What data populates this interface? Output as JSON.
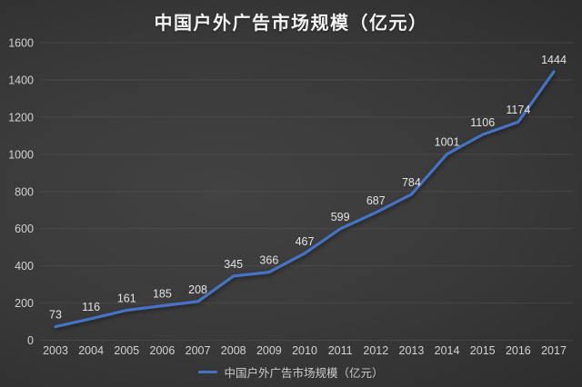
{
  "chart_data": {
    "type": "line",
    "title": "中国户外广告市场规模（亿元）",
    "series_name": "中国户外广告市场规模（亿元）",
    "categories": [
      "2003",
      "2004",
      "2005",
      "2006",
      "2007",
      "2008",
      "2009",
      "2010",
      "2011",
      "2012",
      "2013",
      "2014",
      "2015",
      "2016",
      "2017"
    ],
    "values": [
      73,
      116,
      161,
      185,
      208,
      345,
      366,
      467,
      599,
      687,
      784,
      1001,
      1106,
      1174,
      1444
    ],
    "xlabel": "",
    "ylabel": "",
    "ylim": [
      0,
      1600
    ],
    "ytick_step": 200,
    "yticks": [
      0,
      200,
      400,
      600,
      800,
      1000,
      1200,
      1400,
      1600
    ],
    "grid": true,
    "data_labels": true,
    "legend_position": "bottom",
    "colors": {
      "line": "#4673c4",
      "grid": "#5a5a5a",
      "tick_text": "#d2d2d2",
      "data_label_text": "#e3e3e3",
      "title_text": "#f4f4f4",
      "background_center": "#424242",
      "background_edge": "#272727"
    }
  }
}
